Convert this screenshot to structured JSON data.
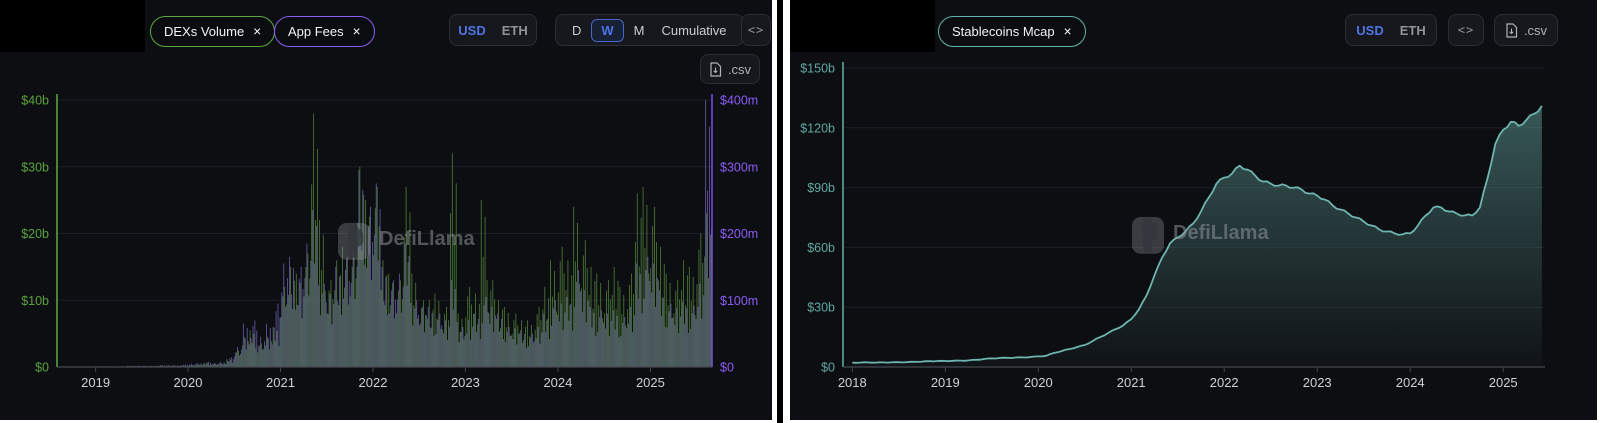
{
  "colors": {
    "accent_blue": "#4e74e6",
    "green": "#5aa23f",
    "bar_green": "#4d7d37",
    "purple": "#8b5cf6",
    "purple_axis": "#7b46e8",
    "bar_purple": "#6f63b2",
    "teal": "#5fa8a1",
    "teal_line": "#6db5ae",
    "axis_gray": "#44474d",
    "tick_text": "#ced1d6",
    "grid": "#1b1e24",
    "panel_bg": "#0d0e12"
  },
  "left_panel": {
    "legend": [
      {
        "label": "DEXs Volume",
        "close": "×",
        "color": "#56a93e"
      },
      {
        "label": "App Fees",
        "close": "×",
        "color": "#8b5cf6"
      }
    ],
    "currency_toggle": {
      "options": [
        "USD",
        "ETH"
      ],
      "selected": "USD"
    },
    "interval_toggle": {
      "options": [
        "D",
        "W",
        "M",
        "Cumulative"
      ],
      "selected": "W"
    },
    "code_button": "<>",
    "csv_button": ".csv",
    "watermark": "DefiLlama",
    "left_axis": {
      "labels": [
        "$40b",
        "$30b",
        "$20b",
        "$10b",
        "$0"
      ]
    },
    "right_axis": {
      "labels": [
        "$400m",
        "$300m",
        "$200m",
        "$100m",
        "$0"
      ]
    },
    "x_axis": {
      "labels": [
        "2019",
        "2020",
        "2021",
        "2022",
        "2023",
        "2024",
        "2025"
      ]
    }
  },
  "right_panel": {
    "legend": [
      {
        "label": "Stablecoins Mcap",
        "close": "×",
        "color": "#5fb5ad"
      }
    ],
    "currency_toggle": {
      "options": [
        "USD",
        "ETH"
      ],
      "selected": "USD"
    },
    "code_button": "<>",
    "csv_button": ".csv",
    "watermark": "DefiLlama",
    "y_axis": {
      "labels": [
        "$150b",
        "$120b",
        "$90b",
        "$60b",
        "$30b",
        "$0"
      ]
    },
    "x_axis": {
      "labels": [
        "2018",
        "2019",
        "2020",
        "2021",
        "2022",
        "2023",
        "2024",
        "2025"
      ]
    }
  },
  "chart_data": [
    {
      "type": "bar",
      "title": "DEXs Volume & App Fees (weekly)",
      "x_monthly_start": "2018-08",
      "x_start": 2018.583,
      "x_ticks": [
        2019,
        2020,
        2021,
        2022,
        2023,
        2024,
        2025
      ],
      "left_ylim": [
        0,
        40
      ],
      "right_ylim": [
        0,
        400
      ],
      "left_axis_labels": [
        "$40b",
        "$30b",
        "$20b",
        "$10b",
        "$0"
      ],
      "right_axis_labels": [
        "$400m",
        "$300m",
        "$200m",
        "$100m",
        "$0"
      ],
      "series": [
        {
          "name": "DEXs Volume",
          "axis": "left",
          "unit": "$b",
          "color": "#4d7d37",
          "values": [
            0.1,
            0.1,
            0.1,
            0.1,
            0.1,
            0.1,
            0.1,
            0.1,
            0.1,
            0.15,
            0.15,
            0.15,
            0.15,
            0.2,
            0.2,
            0.2,
            0.25,
            0.3,
            0.4,
            0.6,
            0.5,
            0.6,
            1.2,
            2.5,
            4.5,
            5.5,
            3.5,
            4.5,
            6,
            12,
            15,
            14,
            17,
            38,
            22,
            13,
            16,
            18,
            17,
            30,
            25,
            27,
            16,
            14,
            13,
            27,
            14,
            10,
            10,
            11,
            9,
            32,
            8,
            12,
            11,
            25,
            13,
            10,
            9,
            8,
            7,
            7,
            9,
            12,
            16,
            18,
            16,
            24,
            19,
            15,
            14,
            13,
            15,
            12,
            14,
            26,
            27,
            24,
            18,
            14,
            13,
            16,
            15,
            20,
            23
          ]
        },
        {
          "name": "App Fees",
          "axis": "right",
          "unit": "$m",
          "color": "#6f63b2",
          "values": [
            0,
            0,
            0,
            0,
            0,
            1,
            1,
            1,
            1,
            2,
            2,
            2,
            2,
            3,
            3,
            3,
            4,
            5,
            6,
            8,
            6,
            8,
            15,
            30,
            65,
            70,
            45,
            65,
            95,
            155,
            165,
            150,
            185,
            235,
            125,
            110,
            150,
            165,
            175,
            295,
            240,
            275,
            150,
            130,
            140,
            185,
            100,
            90,
            90,
            80,
            70,
            130,
            60,
            70,
            80,
            105,
            90,
            80,
            60,
            58,
            55,
            50,
            60,
            80,
            100,
            95,
            105,
            145,
            115,
            90,
            85,
            80,
            85,
            75,
            90,
            155,
            165,
            155,
            115,
            95,
            88,
            98,
            92,
            125,
            400
          ]
        }
      ]
    },
    {
      "type": "area",
      "title": "Stablecoins Mcap",
      "name": "Stablecoins Mcap",
      "unit": "$b",
      "x_monthly_start": "2018-01",
      "x_start": 2018.0,
      "x_ticks": [
        2018,
        2019,
        2020,
        2021,
        2022,
        2023,
        2024,
        2025
      ],
      "ylim": [
        0,
        150
      ],
      "y_labels": [
        "$150b",
        "$120b",
        "$90b",
        "$60b",
        "$30b",
        "$0"
      ],
      "color": "#6db5ae",
      "values": [
        2.2,
        2.2,
        2.3,
        2.2,
        2.3,
        2.3,
        2.4,
        2.4,
        2.6,
        2.7,
        2.9,
        3,
        3,
        3.1,
        3.2,
        3.3,
        3.6,
        4,
        4.3,
        4.5,
        4.6,
        4.7,
        4.8,
        5,
        5.3,
        5.6,
        7,
        8,
        9,
        10,
        11,
        13,
        15,
        17,
        19,
        21,
        24,
        29,
        36,
        46,
        55,
        62,
        65,
        68,
        72,
        78,
        85,
        92,
        95,
        97,
        101,
        99,
        96,
        93,
        92,
        91,
        91,
        90,
        89,
        87,
        86,
        84,
        81,
        79,
        77,
        75,
        73,
        71,
        69,
        68,
        67,
        66.5,
        67,
        71,
        76,
        80,
        80,
        78,
        77,
        76,
        76,
        80,
        95,
        112,
        119,
        123,
        121,
        124,
        127,
        131
      ]
    }
  ]
}
